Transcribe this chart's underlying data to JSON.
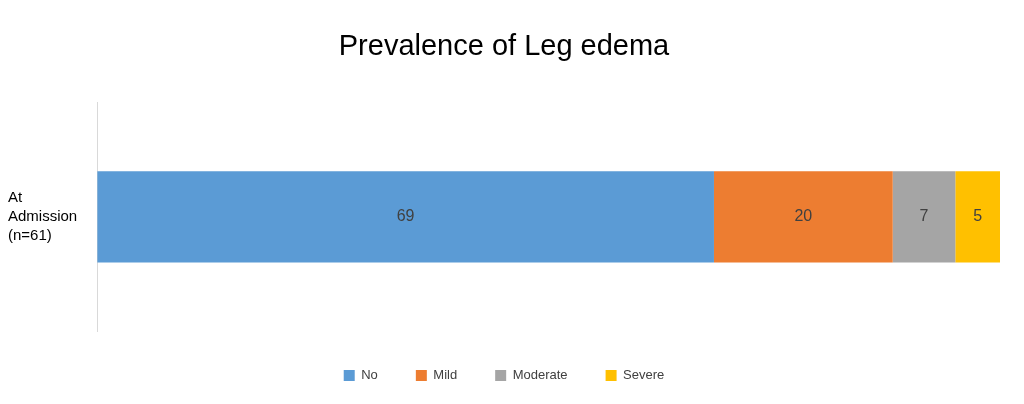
{
  "chart_data": {
    "type": "bar",
    "title": "Prevalence of Leg edema",
    "orientation": "horizontal",
    "stacked": true,
    "categories": [
      "At Admission (n=61)"
    ],
    "series": [
      {
        "name": "No",
        "color": "#5b9bd5",
        "values": [
          69
        ]
      },
      {
        "name": "Mild",
        "color": "#ed7d31",
        "values": [
          20
        ]
      },
      {
        "name": "Moderate",
        "color": "#a5a5a5",
        "values": [
          7
        ]
      },
      {
        "name": "Severe",
        "color": "#ffc000",
        "values": [
          5
        ]
      }
    ],
    "xlim": [
      0,
      101
    ],
    "data_labels": true,
    "legend": "bottom",
    "grid": false
  }
}
